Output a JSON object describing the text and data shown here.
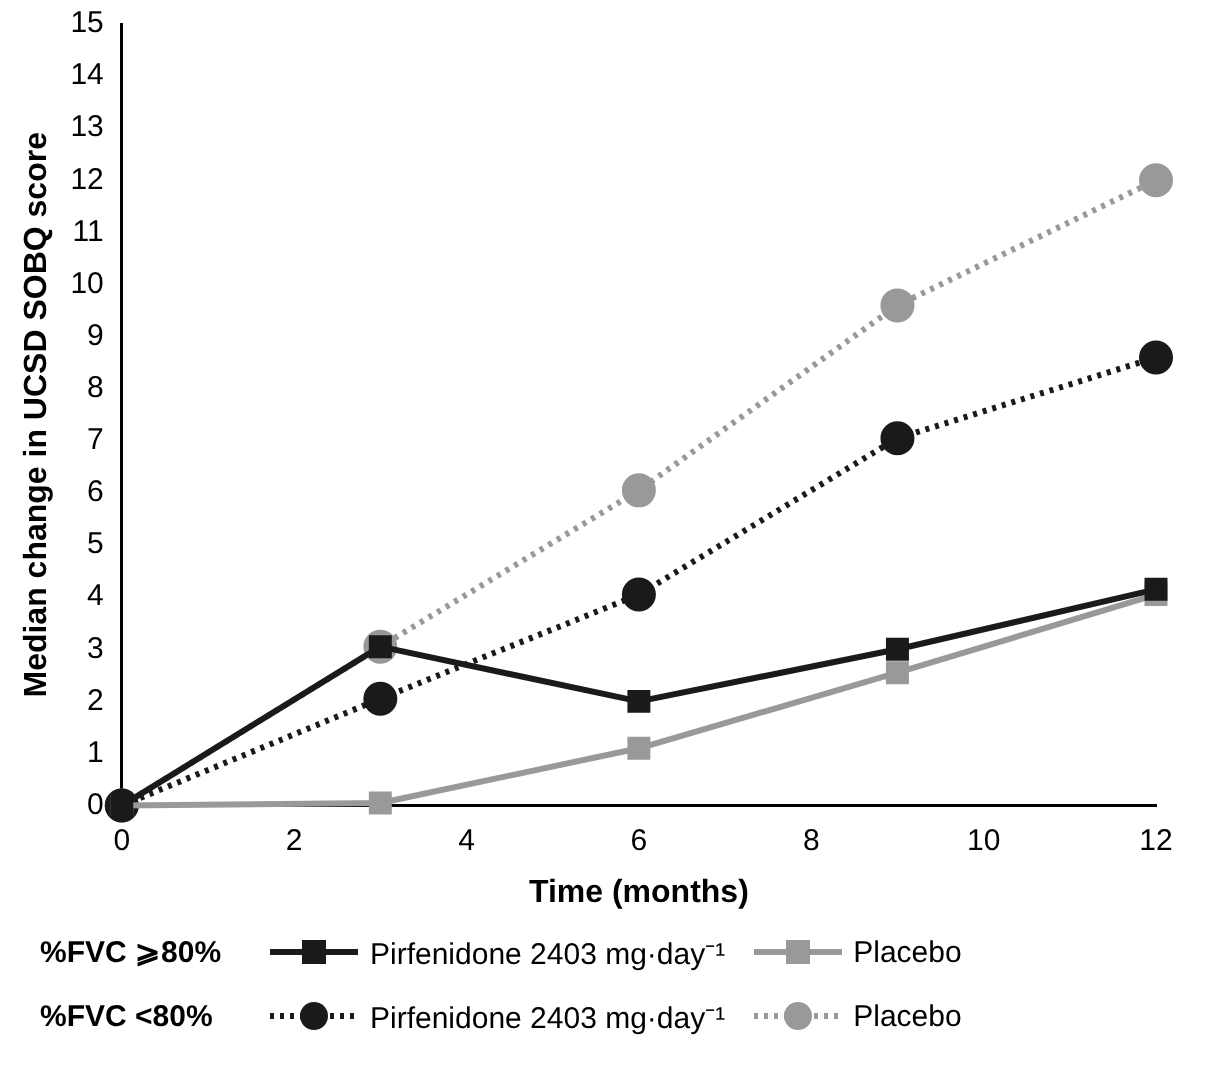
{
  "chart_data": {
    "type": "line",
    "xlabel": "Time (months)",
    "ylabel": "Median change in UCSD SOBQ score",
    "x": [
      0,
      3,
      6,
      9,
      12
    ],
    "xlim": [
      0,
      12
    ],
    "xticks": [
      0,
      2,
      4,
      6,
      8,
      10,
      12
    ],
    "ylim": [
      0,
      15
    ],
    "yticks": [
      0,
      1,
      2,
      3,
      4,
      5,
      6,
      7,
      8,
      9,
      10,
      11,
      12,
      13,
      14,
      15
    ],
    "grid": false,
    "legend": "bottom",
    "annotations": [
      "%FVC ⩾80%",
      "%FVC <80%"
    ],
    "series": [
      {
        "name": "Pirfenidone 2403 mg·day⁻¹",
        "color": "#1a1a1a",
        "marker": "square",
        "line_style": "solid",
        "values": [
          0,
          3.05,
          2.0,
          3.0,
          4.15
        ]
      },
      {
        "name": "Placebo",
        "color": "#999999",
        "marker": "square",
        "line_style": "solid",
        "values": [
          0,
          0.05,
          1.1,
          2.55,
          4.05
        ]
      },
      {
        "name": "Pirfenidone 2403 mg·day⁻¹",
        "color": "#1a1a1a",
        "marker": "circle",
        "line_style": "dotted",
        "values": [
          0,
          2.05,
          4.05,
          7.05,
          8.6
        ]
      },
      {
        "name": "Placebo",
        "color": "#999999",
        "marker": "circle",
        "line_style": "dotted",
        "values": [
          0,
          3.05,
          6.05,
          9.6,
          12.0
        ]
      }
    ]
  }
}
